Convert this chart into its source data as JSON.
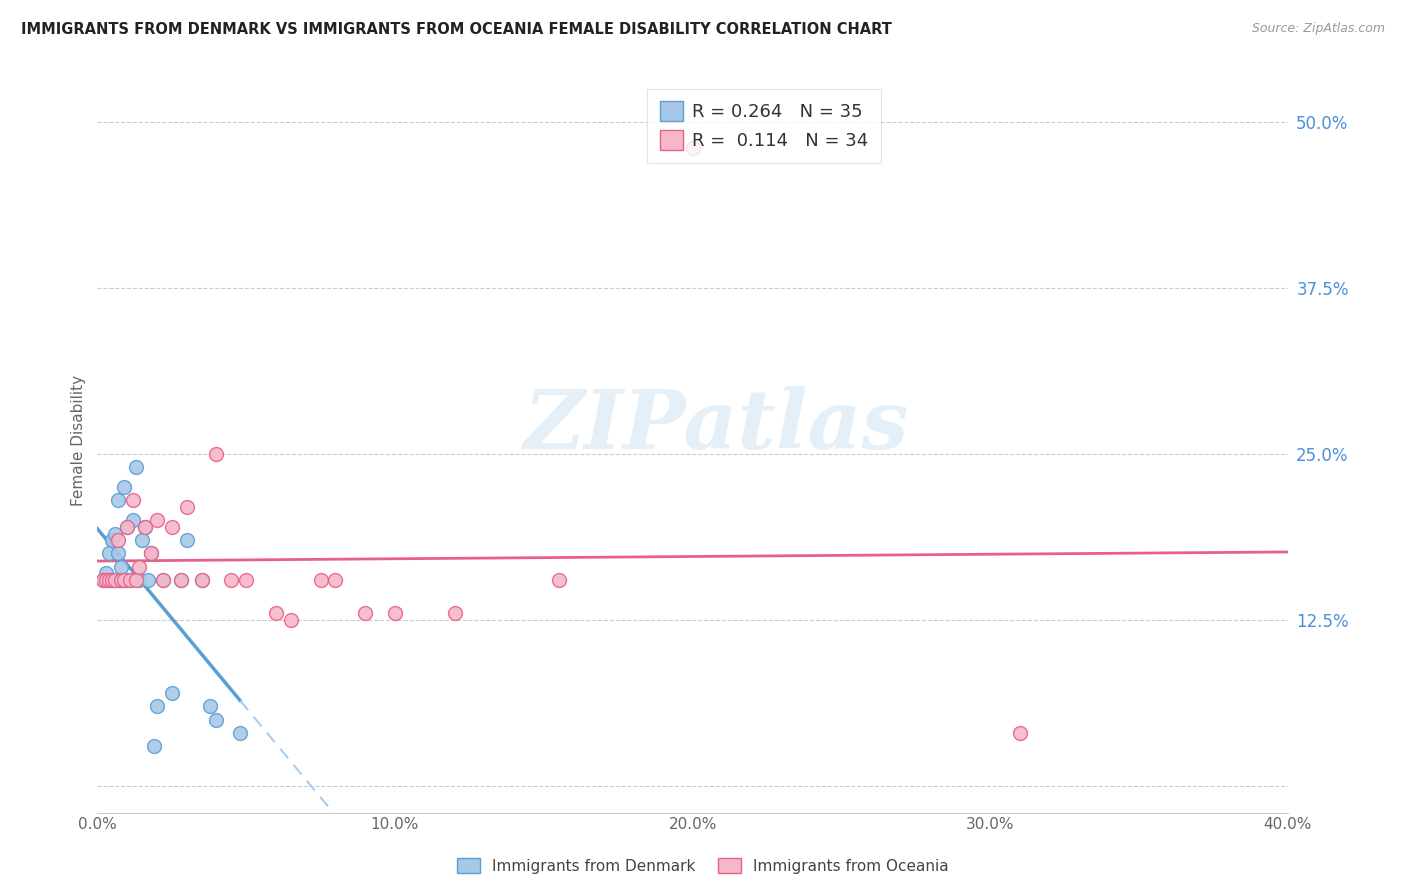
{
  "title": "IMMIGRANTS FROM DENMARK VS IMMIGRANTS FROM OCEANIA FEMALE DISABILITY CORRELATION CHART",
  "source": "Source: ZipAtlas.com",
  "ylabel": "Female Disability",
  "xlim": [
    0.0,
    0.4
  ],
  "ylim": [
    -0.02,
    0.54
  ],
  "x_ticks": [
    0.0,
    0.1,
    0.2,
    0.3,
    0.4
  ],
  "x_tick_labels": [
    "0.0%",
    "10.0%",
    "20.0%",
    "30.0%",
    "40.0%"
  ],
  "y_ticks": [
    0.0,
    0.125,
    0.25,
    0.375,
    0.5
  ],
  "y_tick_labels": [
    "",
    "12.5%",
    "25.0%",
    "37.5%",
    "50.0%"
  ],
  "denmark_color": "#a8c8e8",
  "oceania_color": "#f5b8c8",
  "denmark_edge_color": "#5a9fd4",
  "oceania_edge_color": "#e8608a",
  "denmark_trend_color": "#5a9fd4",
  "oceania_trend_color": "#e8608a",
  "R_denmark": 0.264,
  "N_denmark": 35,
  "R_oceania": 0.114,
  "N_oceania": 34,
  "legend_label_denmark": "Immigrants from Denmark",
  "legend_label_oceania": "Immigrants from Oceania",
  "watermark_text": "ZIPatlas",
  "denmark_x": [
    0.002,
    0.003,
    0.004,
    0.004,
    0.005,
    0.005,
    0.006,
    0.006,
    0.007,
    0.007,
    0.007,
    0.008,
    0.008,
    0.009,
    0.009,
    0.01,
    0.01,
    0.011,
    0.012,
    0.013,
    0.014,
    0.015,
    0.016,
    0.017,
    0.018,
    0.019,
    0.02,
    0.022,
    0.025,
    0.028,
    0.03,
    0.035,
    0.038,
    0.04,
    0.048
  ],
  "denmark_y": [
    0.155,
    0.16,
    0.155,
    0.175,
    0.155,
    0.185,
    0.155,
    0.19,
    0.175,
    0.155,
    0.215,
    0.155,
    0.165,
    0.155,
    0.225,
    0.155,
    0.195,
    0.155,
    0.2,
    0.24,
    0.155,
    0.185,
    0.195,
    0.155,
    0.175,
    0.03,
    0.06,
    0.155,
    0.07,
    0.155,
    0.185,
    0.155,
    0.06,
    0.05,
    0.04
  ],
  "oceania_x": [
    0.002,
    0.003,
    0.004,
    0.005,
    0.006,
    0.007,
    0.008,
    0.009,
    0.01,
    0.011,
    0.012,
    0.013,
    0.014,
    0.016,
    0.018,
    0.02,
    0.022,
    0.025,
    0.028,
    0.03,
    0.035,
    0.04,
    0.045,
    0.05,
    0.06,
    0.065,
    0.075,
    0.08,
    0.09,
    0.1,
    0.12,
    0.155,
    0.2,
    0.31
  ],
  "oceania_y": [
    0.155,
    0.155,
    0.155,
    0.155,
    0.155,
    0.185,
    0.155,
    0.155,
    0.195,
    0.155,
    0.215,
    0.155,
    0.165,
    0.195,
    0.175,
    0.2,
    0.155,
    0.195,
    0.155,
    0.21,
    0.155,
    0.25,
    0.155,
    0.155,
    0.13,
    0.125,
    0.155,
    0.155,
    0.13,
    0.13,
    0.13,
    0.155,
    0.48,
    0.04
  ]
}
